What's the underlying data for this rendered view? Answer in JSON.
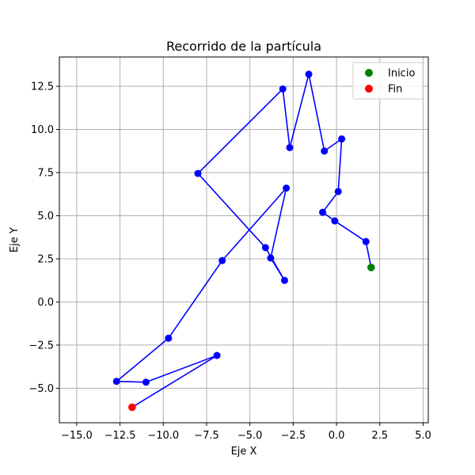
{
  "chart_data": {
    "type": "scatter",
    "title": "Recorrido de la partícula",
    "xlabel": "Eje X",
    "ylabel": "Eje Y",
    "xlim": [
      -16.0,
      5.3
    ],
    "ylim": [
      -7.0,
      14.2
    ],
    "xticks": [
      -15.0,
      -12.5,
      -10.0,
      -7.5,
      -5.0,
      -2.5,
      0.0,
      2.5,
      5.0
    ],
    "yticks": [
      -5.0,
      -2.5,
      0.0,
      2.5,
      5.0,
      7.5,
      10.0,
      12.5
    ],
    "xtick_labels": [
      "−15.0",
      "−12.5",
      "−10.0",
      "−7.5",
      "−5.0",
      "−2.5",
      "0.0",
      "2.5",
      "5.0"
    ],
    "ytick_labels": [
      "−5.0",
      "−2.5",
      "0.0",
      "2.5",
      "5.0",
      "7.5",
      "10.0",
      "12.5"
    ],
    "grid": true,
    "legend_position": "top-right",
    "path": {
      "color": "#0000ff",
      "x": [
        2.0,
        1.7,
        -0.1,
        -0.8,
        0.1,
        0.3,
        -0.7,
        -1.6,
        -2.7,
        -3.1,
        -8.0,
        -4.1,
        -3.0,
        -3.8,
        -2.9,
        -6.6,
        -9.7,
        -12.7,
        -11.0,
        -6.9,
        -11.8
      ],
      "y": [
        2.0,
        3.5,
        4.7,
        5.2,
        6.4,
        9.45,
        8.75,
        13.2,
        8.95,
        12.35,
        7.45,
        3.15,
        1.25,
        2.55,
        6.6,
        2.4,
        -2.1,
        -4.6,
        -4.65,
        -3.1,
        -6.1
      ]
    },
    "series": [
      {
        "name": "Inicio",
        "color": "#008000",
        "x": [
          2.0
        ],
        "y": [
          2.0
        ]
      },
      {
        "name": "Fin",
        "color": "#ff0000",
        "x": [
          -11.8
        ],
        "y": [
          -6.1
        ]
      }
    ]
  }
}
